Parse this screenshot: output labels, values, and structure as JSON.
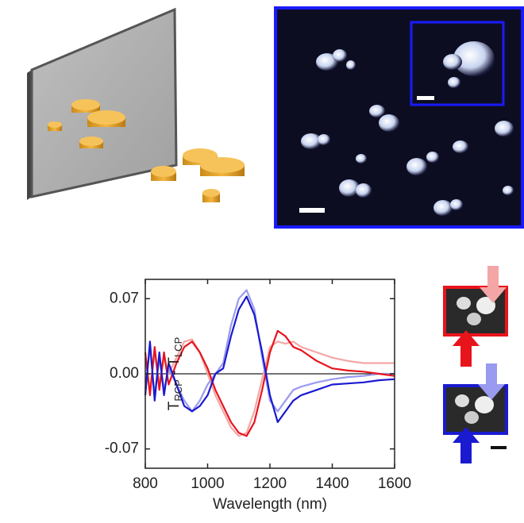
{
  "chart_data": {
    "type": "line",
    "ylabel": [
      "T",
      "RCP",
      " - T",
      "LCP"
    ],
    "xlabel": "Wavelength (nm)",
    "x": [
      800,
      815,
      830,
      845,
      860,
      875,
      900,
      925,
      950,
      975,
      1000,
      1025,
      1050,
      1075,
      1100,
      1125,
      1150,
      1175,
      1200,
      1225,
      1250,
      1275,
      1300,
      1350,
      1400,
      1450,
      1500,
      1550,
      1600
    ],
    "series": [
      {
        "color": "#f4a6a6",
        "values": [
          0.015,
          -0.015,
          0.02,
          -0.01,
          0.015,
          0.0,
          0.015,
          0.03,
          0.032,
          0.02,
          0.0,
          -0.02,
          -0.035,
          -0.05,
          -0.058,
          -0.055,
          -0.035,
          -0.005,
          0.025,
          0.03,
          0.028,
          0.03,
          0.025,
          0.02,
          0.015,
          0.012,
          0.01,
          0.01,
          0.01
        ]
      },
      {
        "color": "#9a9af0",
        "values": [
          -0.015,
          0.025,
          -0.02,
          0.015,
          -0.015,
          0.005,
          -0.01,
          -0.025,
          -0.035,
          -0.025,
          -0.01,
          0.0,
          0.01,
          0.045,
          0.07,
          0.078,
          0.06,
          0.015,
          -0.025,
          -0.035,
          -0.025,
          -0.015,
          -0.012,
          -0.008,
          -0.005,
          -0.003,
          -0.002,
          0.0,
          0.0
        ]
      },
      {
        "color": "#e8141c",
        "values": [
          0.02,
          -0.02,
          0.025,
          -0.015,
          0.02,
          -0.01,
          0.01,
          0.025,
          0.03,
          0.02,
          0.005,
          -0.015,
          -0.03,
          -0.045,
          -0.055,
          -0.058,
          -0.045,
          -0.015,
          0.02,
          0.04,
          0.035,
          0.025,
          0.022,
          0.012,
          0.005,
          0.003,
          0.002,
          0.0,
          -0.002
        ]
      },
      {
        "color": "#1a1ad0",
        "values": [
          -0.02,
          0.03,
          -0.025,
          0.02,
          -0.02,
          0.01,
          -0.01,
          -0.03,
          -0.035,
          -0.03,
          -0.02,
          0.0,
          0.005,
          0.035,
          0.06,
          0.072,
          0.055,
          0.02,
          -0.02,
          -0.045,
          -0.035,
          -0.025,
          -0.02,
          -0.015,
          -0.01,
          -0.009,
          -0.008,
          -0.006,
          -0.005
        ]
      }
    ],
    "xlim": [
      800,
      1600
    ],
    "xticks": [
      800,
      1000,
      1200,
      1400,
      1600
    ],
    "ylim": [
      -0.088,
      0.088
    ],
    "yticks": [
      -0.07,
      {
        "value": 0,
        "label": "0.00"
      },
      0.07
    ]
  }
}
